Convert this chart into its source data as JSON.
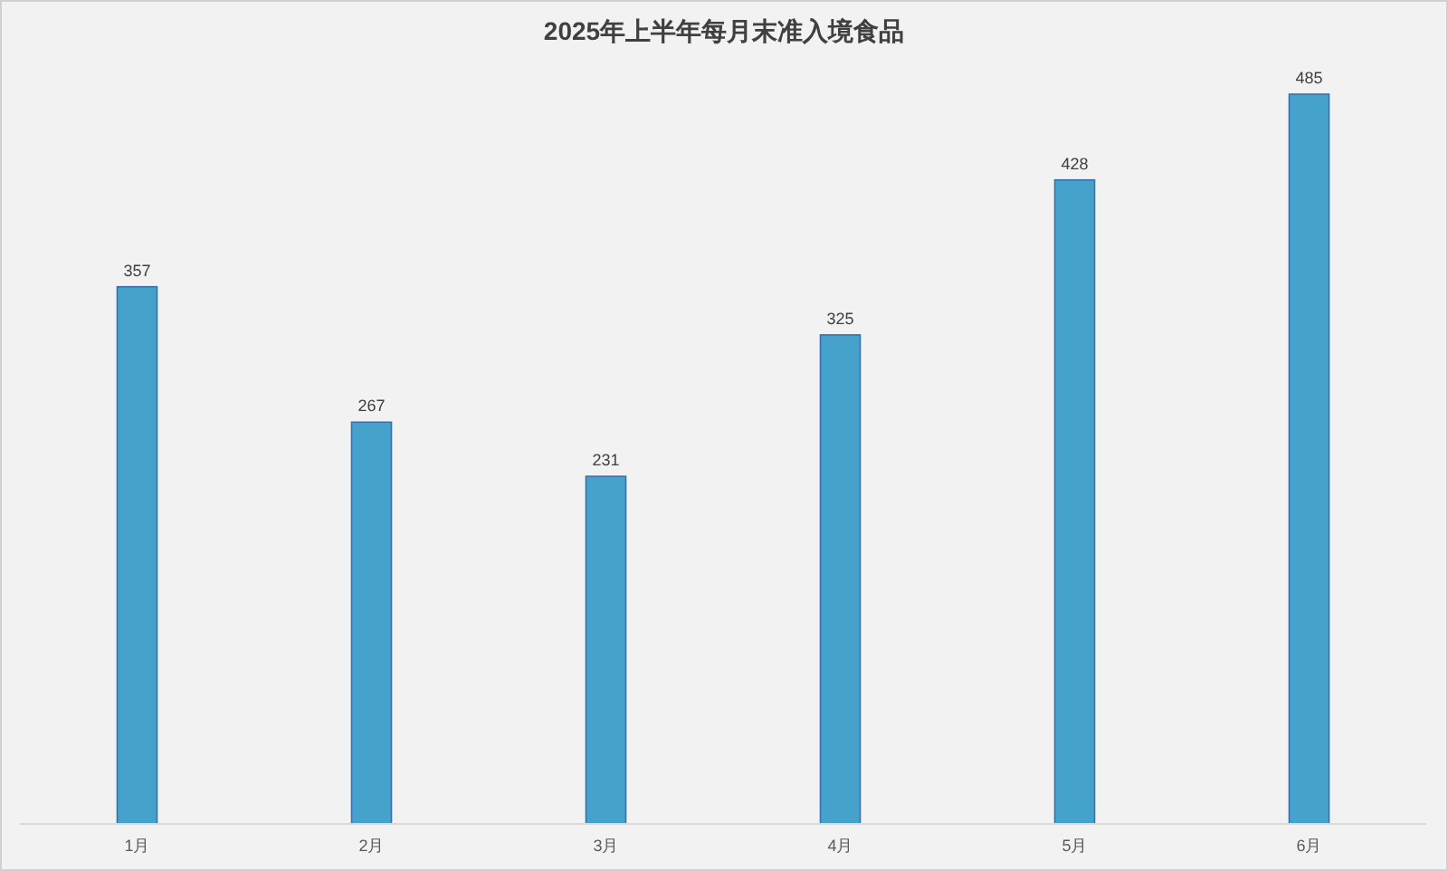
{
  "chart_data": {
    "type": "bar",
    "title": "2025年上半年每月末准入境食品",
    "categories": [
      "1月",
      "2月",
      "3月",
      "4月",
      "5月",
      "6月"
    ],
    "values": [
      357,
      267,
      231,
      325,
      428,
      485
    ],
    "color": "#45a3cb",
    "data_labels": true
  }
}
